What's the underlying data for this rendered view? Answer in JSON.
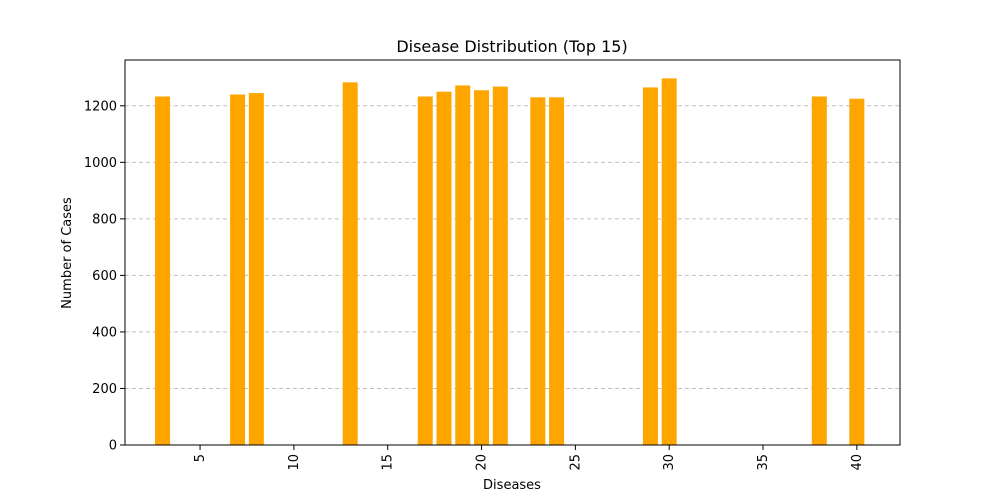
{
  "chart_data": {
    "type": "bar",
    "title": "Disease Distribution (Top 15)",
    "xlabel": "Diseases",
    "ylabel": "Number of Cases",
    "x": [
      3,
      7,
      8,
      13,
      17,
      18,
      19,
      20,
      21,
      23,
      24,
      29,
      30,
      38,
      40
    ],
    "values": [
      1233,
      1240,
      1245,
      1283,
      1233,
      1250,
      1272,
      1255,
      1268,
      1230,
      1230,
      1265,
      1297,
      1233,
      1225
    ],
    "xlim": [
      1.0,
      42.3
    ],
    "ylim": [
      0,
      1362
    ],
    "xticks": [
      5,
      10,
      15,
      20,
      25,
      30,
      35,
      40
    ],
    "yticks": [
      0,
      200,
      400,
      600,
      800,
      1000,
      1200
    ],
    "grid": "y-dashed",
    "bar_color": "#ffa500",
    "grid_color": "#c0c0c0"
  }
}
